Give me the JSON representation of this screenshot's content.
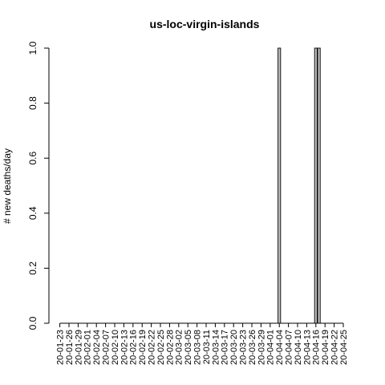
{
  "chart_data": {
    "type": "bar",
    "title": "us-loc-virgin-islands",
    "xlabel": "",
    "ylabel": "# new deaths/day",
    "ylim": [
      0,
      1
    ],
    "yticks": [
      "0.0",
      "0.2",
      "0.4",
      "0.6",
      "0.8",
      "1.0"
    ],
    "categories": [
      "20-01-23",
      "20-01-24",
      "20-01-25",
      "20-01-26",
      "20-01-27",
      "20-01-28",
      "20-01-29",
      "20-01-30",
      "20-01-31",
      "20-02-01",
      "20-02-02",
      "20-02-03",
      "20-02-04",
      "20-02-05",
      "20-02-06",
      "20-02-07",
      "20-02-08",
      "20-02-09",
      "20-02-10",
      "20-02-11",
      "20-02-12",
      "20-02-13",
      "20-02-14",
      "20-02-15",
      "20-02-16",
      "20-02-17",
      "20-02-18",
      "20-02-19",
      "20-02-20",
      "20-02-21",
      "20-02-22",
      "20-02-23",
      "20-02-24",
      "20-02-25",
      "20-02-26",
      "20-02-27",
      "20-02-28",
      "20-02-29",
      "20-03-01",
      "20-03-02",
      "20-03-03",
      "20-03-04",
      "20-03-05",
      "20-03-06",
      "20-03-07",
      "20-03-08",
      "20-03-09",
      "20-03-10",
      "20-03-11",
      "20-03-12",
      "20-03-13",
      "20-03-14",
      "20-03-15",
      "20-03-16",
      "20-03-17",
      "20-03-18",
      "20-03-19",
      "20-03-20",
      "20-03-21",
      "20-03-22",
      "20-03-23",
      "20-03-24",
      "20-03-25",
      "20-03-26",
      "20-03-27",
      "20-03-28",
      "20-03-29",
      "20-03-30",
      "20-03-31",
      "20-04-01",
      "20-04-02",
      "20-04-03",
      "20-04-04",
      "20-04-05",
      "20-04-06",
      "20-04-07",
      "20-04-08",
      "20-04-09",
      "20-04-10",
      "20-04-11",
      "20-04-12",
      "20-04-13",
      "20-04-14",
      "20-04-15",
      "20-04-16",
      "20-04-17",
      "20-04-18",
      "20-04-19",
      "20-04-20",
      "20-04-21",
      "20-04-22",
      "20-04-23",
      "20-04-24",
      "20-04-25"
    ],
    "xtick_labels": [
      "20-01-23",
      "20-01-26",
      "20-01-29",
      "20-02-01",
      "20-02-04",
      "20-02-07",
      "20-02-10",
      "20-02-13",
      "20-02-16",
      "20-02-19",
      "20-02-22",
      "20-02-25",
      "20-02-28",
      "20-03-02",
      "20-03-05",
      "20-03-08",
      "20-03-11",
      "20-03-14",
      "20-03-17",
      "20-03-20",
      "20-03-23",
      "20-03-26",
      "20-03-29",
      "20-04-01",
      "20-04-04",
      "20-04-07",
      "20-04-10",
      "20-04-13",
      "20-04-16",
      "20-04-19",
      "20-04-22",
      "20-04-25"
    ],
    "values": [
      0,
      0,
      0,
      0,
      0,
      0,
      0,
      0,
      0,
      0,
      0,
      0,
      0,
      0,
      0,
      0,
      0,
      0,
      0,
      0,
      0,
      0,
      0,
      0,
      0,
      0,
      0,
      0,
      0,
      0,
      0,
      0,
      0,
      0,
      0,
      0,
      0,
      0,
      0,
      0,
      0,
      0,
      0,
      0,
      0,
      0,
      0,
      0,
      0,
      0,
      0,
      0,
      0,
      0,
      0,
      0,
      0,
      0,
      0,
      0,
      0,
      0,
      0,
      0,
      0,
      0,
      0,
      0,
      0,
      0,
      0,
      0,
      1,
      0,
      0,
      0,
      0,
      0,
      0,
      0,
      0,
      0,
      0,
      0,
      1,
      1,
      0,
      0,
      0,
      0,
      0,
      0,
      0,
      0
    ],
    "bar_color": "#bebebe",
    "grid": false,
    "legend": "none"
  }
}
